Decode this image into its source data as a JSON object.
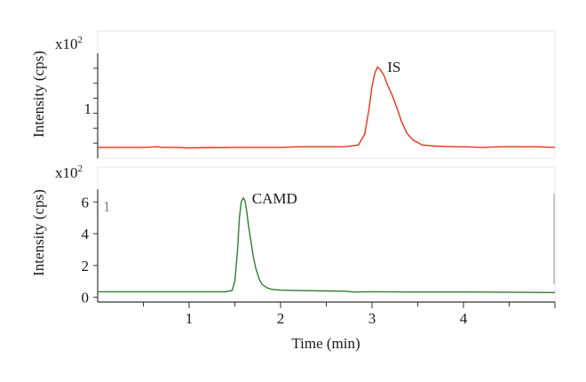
{
  "chart_data": [
    {
      "type": "line",
      "panel": "top",
      "multiplier_label": "x10",
      "multiplier_exp": "2",
      "ylabel": "Intensity (cps)",
      "xlim": [
        0,
        5
      ],
      "ylim": [
        0,
        1.75
      ],
      "y_ticks": [
        0.25,
        0.5,
        0.75,
        1,
        1.25,
        1.5
      ],
      "y_tick_labels": [
        {
          "value": 1,
          "label": "1"
        }
      ],
      "annotations": [
        {
          "text": "IS",
          "x": 3.08,
          "y": 1.53
        }
      ],
      "series": [
        {
          "color": "#e8321c",
          "x": [
            0,
            0.5,
            0.66,
            0.7,
            0.9,
            0.95,
            1.5,
            2.0,
            2.2,
            2.25,
            2.7,
            2.85,
            2.92,
            2.97,
            3.0,
            3.03,
            3.06,
            3.09,
            3.13,
            3.17,
            3.22,
            3.27,
            3.32,
            3.38,
            3.45,
            3.55,
            3.7,
            3.9,
            4.0,
            4.2,
            4.4,
            4.6,
            4.8,
            5.0
          ],
          "values": [
            0.18,
            0.18,
            0.19,
            0.18,
            0.18,
            0.17,
            0.18,
            0.18,
            0.19,
            0.19,
            0.19,
            0.22,
            0.4,
            0.85,
            1.2,
            1.42,
            1.52,
            1.48,
            1.38,
            1.22,
            1.05,
            0.85,
            0.62,
            0.42,
            0.3,
            0.22,
            0.2,
            0.19,
            0.19,
            0.18,
            0.19,
            0.19,
            0.19,
            0.18
          ]
        }
      ]
    },
    {
      "type": "line",
      "panel": "bottom",
      "multiplier_label": "x10",
      "multiplier_exp": "2",
      "panel_label": "1",
      "ylabel": "Intensity (cps)",
      "xlabel": "Time (min)",
      "xlim": [
        0,
        5
      ],
      "ylim": [
        -0.3,
        6.8
      ],
      "x_ticks": [
        1,
        2,
        3,
        4
      ],
      "y_ticks": [
        0,
        2,
        4,
        6
      ],
      "annotations": [
        {
          "text": "CAMD",
          "x": 1.6,
          "y": 6.25
        }
      ],
      "series": [
        {
          "color": "#2e7d2e",
          "x": [
            0,
            0.5,
            1.0,
            1.4,
            1.47,
            1.5,
            1.53,
            1.55,
            1.57,
            1.59,
            1.61,
            1.63,
            1.65,
            1.68,
            1.7,
            1.73,
            1.77,
            1.8,
            1.85,
            1.9,
            2.0,
            2.2,
            2.5,
            2.7,
            2.8,
            3.0,
            3.5,
            4.0,
            4.5,
            5.0
          ],
          "values": [
            0.35,
            0.35,
            0.35,
            0.35,
            0.42,
            1.0,
            3.0,
            5.0,
            6.0,
            6.25,
            6.1,
            5.4,
            4.5,
            3.4,
            2.6,
            1.8,
            1.1,
            0.8,
            0.6,
            0.5,
            0.45,
            0.42,
            0.4,
            0.38,
            0.33,
            0.35,
            0.33,
            0.33,
            0.32,
            0.3
          ]
        }
      ]
    }
  ]
}
